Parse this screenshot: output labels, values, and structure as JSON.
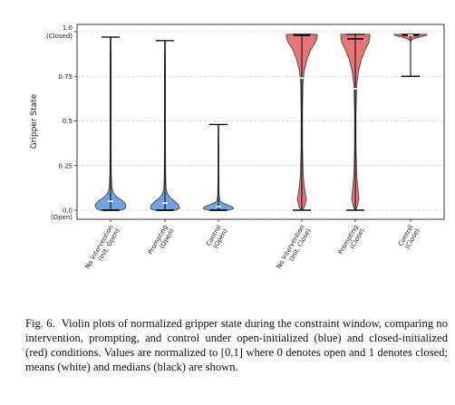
{
  "chart_data": {
    "type": "violin",
    "ylabel": "Gripper State",
    "ylim": [
      0,
      1
    ],
    "yticks": [
      {
        "value": 1.0,
        "label": "1.0",
        "sublabel": "(Closed)"
      },
      {
        "value": 0.75,
        "label": "0.75",
        "sublabel": ""
      },
      {
        "value": 0.5,
        "label": "0.5",
        "sublabel": ""
      },
      {
        "value": 0.25,
        "label": "0.25",
        "sublabel": ""
      },
      {
        "value": 0.0,
        "label": "0.0",
        "sublabel": "(Open)"
      }
    ],
    "grid": "horizontal dashed",
    "colors": {
      "open": "#6fa3e0",
      "closed": "#e97474",
      "edge": "#3a3a3a",
      "mean": "#ffffff",
      "median": "#000000"
    },
    "violins": [
      {
        "label_lines": [
          "No Intervention",
          "(Init. Open)"
        ],
        "group": "open",
        "min": 0.0,
        "max": 0.97,
        "mean": 0.05,
        "median": 0.0
      },
      {
        "label_lines": [
          "Prompting",
          "(Open)"
        ],
        "group": "open",
        "min": 0.0,
        "max": 0.95,
        "mean": 0.04,
        "median": 0.0
      },
      {
        "label_lines": [
          "Control",
          "(Open)"
        ],
        "group": "open",
        "min": 0.0,
        "max": 0.48,
        "mean": 0.02,
        "median": 0.0
      },
      {
        "label_lines": [
          "No Intervention",
          "(Init. Close)"
        ],
        "group": "closed",
        "min": 0.0,
        "max": 0.985,
        "mean": 0.74,
        "median": 0.98
      },
      {
        "label_lines": [
          "Prompting",
          "(Close)"
        ],
        "group": "closed",
        "min": 0.0,
        "max": 0.985,
        "mean": 0.68,
        "median": 0.96
      },
      {
        "label_lines": [
          "Control",
          "(Close)"
        ],
        "group": "closed",
        "min": 0.75,
        "max": 0.985,
        "mean": 0.98,
        "median": 0.98
      }
    ]
  },
  "caption": {
    "label": "Fig. 6.",
    "text": "Violin plots of normalized gripper state during the constraint window, comparing no intervention, prompting, and control under open-initialized (blue) and closed-initialized (red) conditions. Values are normalized to [0,1] where 0 denotes open and 1 denotes closed; means (white) and medians (black) are shown."
  }
}
